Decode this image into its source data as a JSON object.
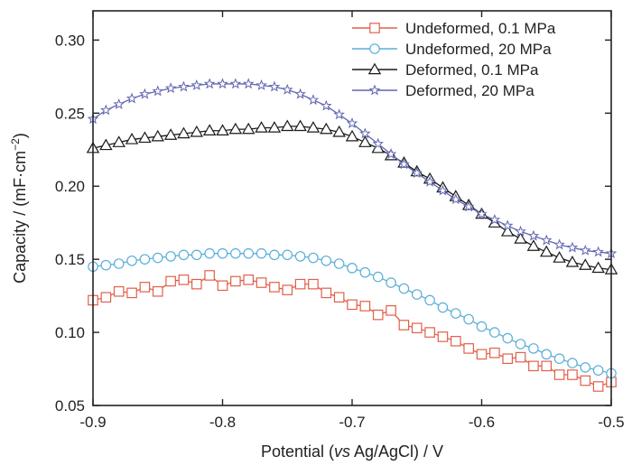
{
  "chart_data": {
    "type": "line",
    "xlabel_parts": [
      "Potential (",
      "vs",
      " Ag/AgCl) / V"
    ],
    "ylabel_parts": [
      "Capacity / (mF·cm",
      "−2",
      ")"
    ],
    "xlim": [
      -0.9,
      -0.5
    ],
    "ylim": [
      0.05,
      0.32
    ],
    "xticks": [
      -0.9,
      -0.8,
      -0.7,
      -0.6,
      -0.5
    ],
    "xtick_labels": [
      "-0.9",
      "-0.8",
      "-0.7",
      "-0.6",
      "-0.5"
    ],
    "yticks": [
      0.05,
      0.1,
      0.15,
      0.2,
      0.25,
      0.3
    ],
    "ytick_labels": [
      "0.05",
      "0.10",
      "0.15",
      "0.20",
      "0.25",
      "0.30"
    ],
    "grid": false,
    "legend_position": "top-right",
    "series": [
      {
        "name": "Undeformed, 0.1 MPa",
        "color": "#e0604a",
        "marker": "square",
        "x": [
          -0.9,
          -0.89,
          -0.88,
          -0.87,
          -0.86,
          -0.85,
          -0.84,
          -0.83,
          -0.82,
          -0.81,
          -0.8,
          -0.79,
          -0.78,
          -0.77,
          -0.76,
          -0.75,
          -0.74,
          -0.73,
          -0.72,
          -0.71,
          -0.7,
          -0.69,
          -0.68,
          -0.67,
          -0.66,
          -0.65,
          -0.64,
          -0.63,
          -0.62,
          -0.61,
          -0.6,
          -0.59,
          -0.58,
          -0.57,
          -0.56,
          -0.55,
          -0.54,
          -0.53,
          -0.52,
          -0.51,
          -0.5
        ],
        "y": [
          0.122,
          0.124,
          0.128,
          0.127,
          0.131,
          0.128,
          0.135,
          0.136,
          0.133,
          0.139,
          0.132,
          0.135,
          0.136,
          0.134,
          0.131,
          0.129,
          0.133,
          0.133,
          0.127,
          0.124,
          0.119,
          0.118,
          0.112,
          0.115,
          0.105,
          0.103,
          0.1,
          0.097,
          0.094,
          0.089,
          0.085,
          0.086,
          0.082,
          0.083,
          0.077,
          0.077,
          0.071,
          0.071,
          0.067,
          0.063,
          0.066
        ]
      },
      {
        "name": "Undeformed, 20 MPa",
        "color": "#5aaed8",
        "marker": "circle",
        "x": [
          -0.9,
          -0.89,
          -0.88,
          -0.87,
          -0.86,
          -0.85,
          -0.84,
          -0.83,
          -0.82,
          -0.81,
          -0.8,
          -0.79,
          -0.78,
          -0.77,
          -0.76,
          -0.75,
          -0.74,
          -0.73,
          -0.72,
          -0.71,
          -0.7,
          -0.69,
          -0.68,
          -0.67,
          -0.66,
          -0.65,
          -0.64,
          -0.63,
          -0.62,
          -0.61,
          -0.6,
          -0.59,
          -0.58,
          -0.57,
          -0.56,
          -0.55,
          -0.54,
          -0.53,
          -0.52,
          -0.51,
          -0.5
        ],
        "y": [
          0.145,
          0.146,
          0.147,
          0.149,
          0.15,
          0.151,
          0.152,
          0.153,
          0.153,
          0.154,
          0.154,
          0.154,
          0.154,
          0.154,
          0.153,
          0.153,
          0.152,
          0.151,
          0.149,
          0.147,
          0.144,
          0.141,
          0.138,
          0.134,
          0.13,
          0.126,
          0.122,
          0.117,
          0.113,
          0.109,
          0.104,
          0.1,
          0.096,
          0.092,
          0.089,
          0.085,
          0.082,
          0.079,
          0.076,
          0.074,
          0.072
        ]
      },
      {
        "name": "Deformed, 0.1 MPa",
        "color": "#1a1a1a",
        "marker": "triangle",
        "x": [
          -0.9,
          -0.89,
          -0.88,
          -0.87,
          -0.86,
          -0.85,
          -0.84,
          -0.83,
          -0.82,
          -0.81,
          -0.8,
          -0.79,
          -0.78,
          -0.77,
          -0.76,
          -0.75,
          -0.74,
          -0.73,
          -0.72,
          -0.71,
          -0.7,
          -0.69,
          -0.68,
          -0.67,
          -0.66,
          -0.65,
          -0.64,
          -0.63,
          -0.62,
          -0.61,
          -0.6,
          -0.59,
          -0.58,
          -0.57,
          -0.56,
          -0.55,
          -0.54,
          -0.53,
          -0.52,
          -0.51,
          -0.5
        ],
        "y": [
          0.226,
          0.228,
          0.23,
          0.232,
          0.233,
          0.234,
          0.235,
          0.236,
          0.237,
          0.238,
          0.238,
          0.239,
          0.239,
          0.24,
          0.24,
          0.241,
          0.241,
          0.24,
          0.239,
          0.237,
          0.234,
          0.23,
          0.226,
          0.221,
          0.216,
          0.21,
          0.205,
          0.199,
          0.193,
          0.187,
          0.181,
          0.175,
          0.169,
          0.164,
          0.159,
          0.155,
          0.151,
          0.148,
          0.146,
          0.144,
          0.143
        ]
      },
      {
        "name": "Deformed, 20 MPa",
        "color": "#6066b0",
        "marker": "star",
        "x": [
          -0.9,
          -0.89,
          -0.88,
          -0.87,
          -0.86,
          -0.85,
          -0.84,
          -0.83,
          -0.82,
          -0.81,
          -0.8,
          -0.79,
          -0.78,
          -0.77,
          -0.76,
          -0.75,
          -0.74,
          -0.73,
          -0.72,
          -0.71,
          -0.7,
          -0.69,
          -0.68,
          -0.67,
          -0.66,
          -0.65,
          -0.64,
          -0.63,
          -0.62,
          -0.61,
          -0.6,
          -0.59,
          -0.58,
          -0.57,
          -0.56,
          -0.55,
          -0.54,
          -0.53,
          -0.52,
          -0.51,
          -0.5
        ],
        "y": [
          0.246,
          0.252,
          0.256,
          0.26,
          0.263,
          0.265,
          0.267,
          0.268,
          0.269,
          0.27,
          0.27,
          0.27,
          0.27,
          0.269,
          0.268,
          0.266,
          0.263,
          0.259,
          0.255,
          0.249,
          0.243,
          0.236,
          0.229,
          0.222,
          0.215,
          0.209,
          0.203,
          0.197,
          0.191,
          0.186,
          0.181,
          0.177,
          0.173,
          0.169,
          0.166,
          0.163,
          0.16,
          0.158,
          0.156,
          0.155,
          0.154
        ]
      }
    ]
  }
}
